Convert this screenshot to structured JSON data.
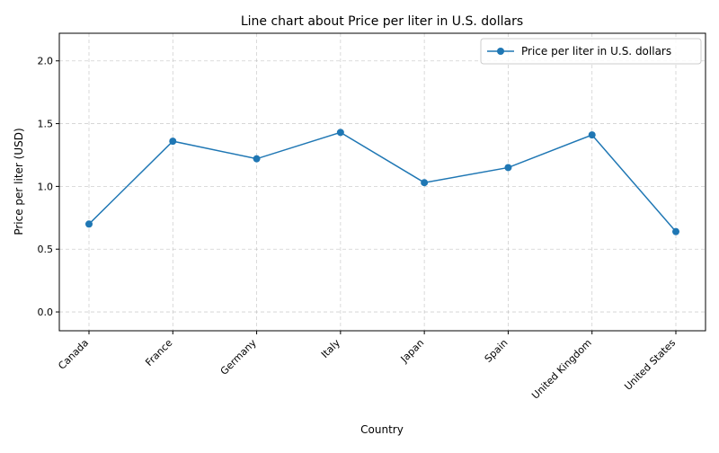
{
  "chart_data": {
    "type": "line",
    "title": "Line chart about Price per liter in U.S. dollars",
    "xlabel": "Country",
    "ylabel": "Price per liter (USD)",
    "categories": [
      "Canada",
      "France",
      "Germany",
      "Italy",
      "Japan",
      "Spain",
      "United Kingdom",
      "United States"
    ],
    "series": [
      {
        "name": "Price per liter in U.S. dollars",
        "values": [
          0.7,
          1.36,
          1.22,
          1.43,
          1.03,
          1.15,
          1.41,
          0.64
        ],
        "color": "#1f77b4"
      }
    ],
    "ylim": [
      -0.15,
      2.22
    ],
    "yticks": [
      "0.0",
      "0.5",
      "1.0",
      "1.5",
      "2.0"
    ],
    "grid": true,
    "legend": "top-right"
  }
}
